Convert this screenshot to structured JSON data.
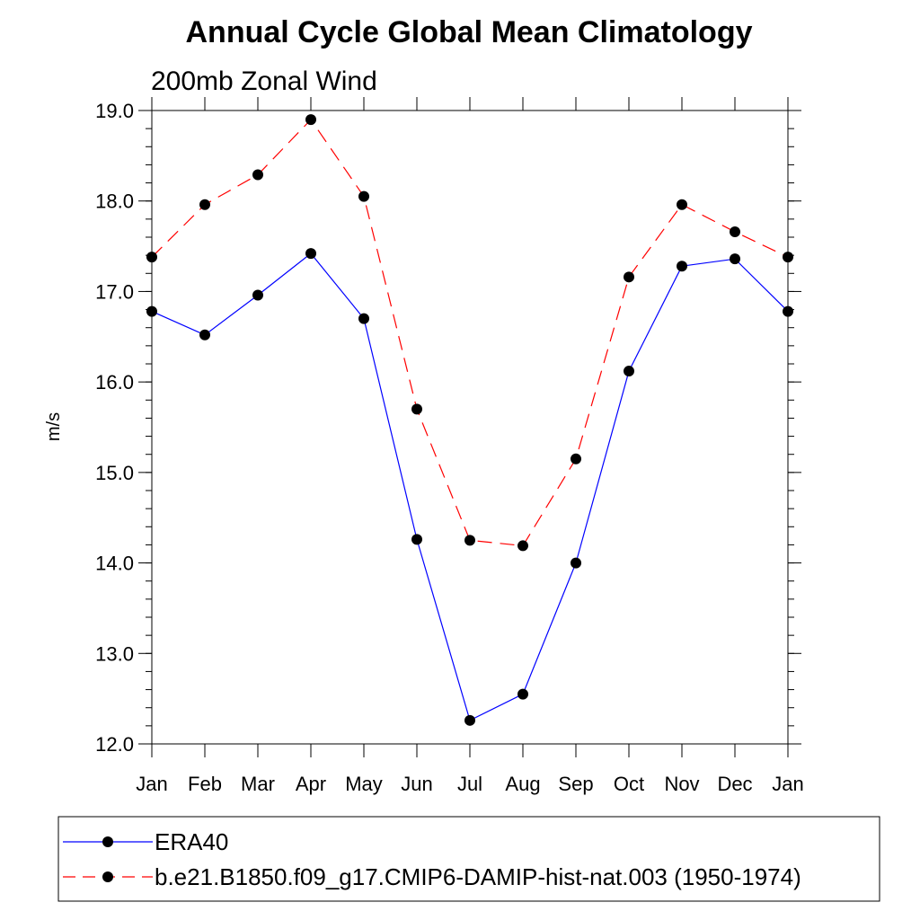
{
  "chart_data": {
    "type": "line",
    "title": "Annual Cycle Global Mean Climatology",
    "subtitle": "200mb Zonal Wind",
    "xlabel": "",
    "ylabel": "m/s",
    "ylim": [
      12.0,
      19.0
    ],
    "yticks": [
      "12.0",
      "13.0",
      "14.0",
      "15.0",
      "16.0",
      "17.0",
      "18.0",
      "19.0"
    ],
    "categories": [
      "Jan",
      "Feb",
      "Mar",
      "Apr",
      "May",
      "Jun",
      "Jul",
      "Aug",
      "Sep",
      "Oct",
      "Nov",
      "Dec",
      "Jan"
    ],
    "grid": false,
    "legend_position": "bottom",
    "series": [
      {
        "name": "ERA40",
        "color": "#0000ff",
        "dash": "solid",
        "marker": "filled-circle",
        "values": [
          16.78,
          16.52,
          16.96,
          17.42,
          16.7,
          14.26,
          12.26,
          12.55,
          14.0,
          16.12,
          17.28,
          17.36,
          16.78
        ]
      },
      {
        "name": "b.e21.B1850.f09_g17.CMIP6-DAMIP-hist-nat.003 (1950-1974)",
        "color": "#ff0000",
        "dash": "dashed",
        "marker": "filled-circle",
        "values": [
          17.38,
          17.96,
          18.29,
          18.9,
          18.05,
          15.7,
          14.25,
          14.19,
          15.15,
          17.16,
          17.96,
          17.66,
          17.38
        ]
      }
    ]
  }
}
